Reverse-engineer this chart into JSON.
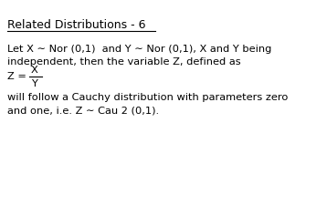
{
  "title": "Related Distributions - 6",
  "bg_color": "#ffffff",
  "text_color": "#000000",
  "font_family": "Courier New",
  "title_fontsize": 9.0,
  "body_fontsize": 8.2,
  "line1": "Let X ∼ Nor (0,1)  and Y ∼ Nor (0,1), X and Y being",
  "line2": "independent, then the variable Z, defined as",
  "fraction_z_label": "Z =",
  "fraction_num": "X",
  "fraction_den": "Y",
  "line3": "will follow a Cauchy distribution with parameters zero",
  "line4": "and one, i.e. Z ∼ Cau 2 (0,1)."
}
